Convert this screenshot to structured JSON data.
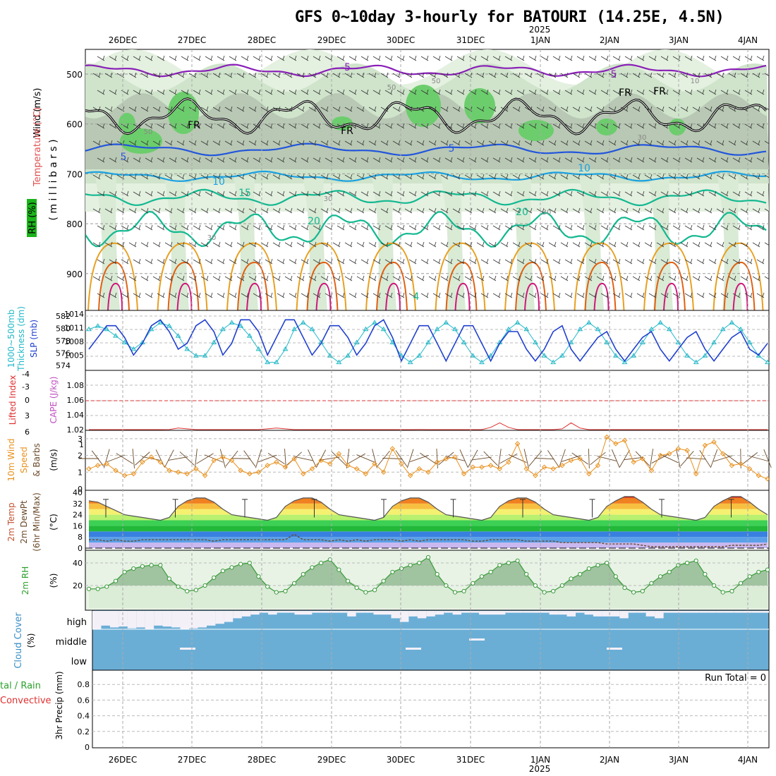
{
  "title": "GFS 0~10day 3-hourly for BATOURI (14.25E, 4.5N)",
  "run_total": "Run Total = 0",
  "colors": {
    "wind_label": "#000000",
    "temperature_label": "#e05050",
    "rh_label": "#00a000",
    "slp_line": "#1f3fd0",
    "thickness_line": "#20b8c8",
    "lifted_index": "#e03030",
    "cape": "#c050c0",
    "wind_speed": "#e8901c",
    "wind_barb": "#6b4a2a",
    "rh_fill": "#9fcf9f",
    "rh_line": "#3a9a3a",
    "cloud": "#6aaed6",
    "precip_total": "#2ca02c",
    "precip_convective": "#e03030"
  },
  "axis": {
    "dates_top": [
      "26DEC",
      "27DEC",
      "28DEC",
      "29DEC",
      "30DEC",
      "31DEC",
      "1JAN",
      "2JAN",
      "3JAN",
      "4JAN"
    ],
    "dates_bottom": [
      "26DEC",
      "27DEC",
      "28DEC",
      "29DEC",
      "30DEC",
      "31DEC",
      "1JAN",
      "2JAN",
      "3JAN",
      "4JAN"
    ],
    "year_top": "2025",
    "year_bottom": "2025"
  },
  "panels": {
    "upper": {
      "ylabel_wind": "Wind (m/s)",
      "ylabel_temp": "Temperature (°C)",
      "ylabel_rh": "RH (%)",
      "ylabel_mb": "( m i l l i b a r s )",
      "yticks": [
        "500",
        "600",
        "700",
        "800",
        "900"
      ],
      "contour_labels": [
        "-5",
        "5",
        "FR",
        "FR",
        "FR",
        "FR",
        "5",
        "5",
        "10",
        "10",
        "15",
        "20",
        "20",
        "30",
        "30",
        "50",
        "50",
        "50",
        "30",
        "10",
        "30",
        "4"
      ]
    },
    "slp": {
      "ylabel_thick": "1000~500mb",
      "ylabel_thick2": "Thickness (dm)",
      "ylabel_slp": "SLP (mb)",
      "left_ticks": [
        "582",
        "580",
        "578",
        "576",
        "574"
      ],
      "right_ticks": [
        "1014",
        "1011",
        "1008",
        "1005"
      ]
    },
    "cape": {
      "ylabel_li": "Lifted Index",
      "ylabel_cape": "CAPE (J/kg)",
      "left_ticks": [
        "-4",
        "-3",
        "-1",
        "0",
        "3",
        "6"
      ],
      "right_ticks": [
        "1.08",
        "1.06",
        "1.04",
        "1.02",
        "1"
      ]
    },
    "wind10": {
      "ylabel_a": "10m Wind",
      "ylabel_b": "Speed",
      "ylabel_c": "& Barbs",
      "ylabel_d": "(m/s)",
      "yticks": [
        "3",
        "2",
        "1",
        "0"
      ]
    },
    "temp2m": {
      "ylabel_a": "2m Temp",
      "ylabel_b": "2m DewPt",
      "ylabel_c": "(6hr Min/Max)",
      "ylabel_d": "(°C)",
      "yticks": [
        "40",
        "32",
        "24",
        "16",
        "8",
        "0"
      ]
    },
    "rh2m": {
      "ylabel": "2m RH",
      "ylabel_unit": "(%)",
      "yticks": [
        "40",
        "20"
      ]
    },
    "cloud": {
      "ylabel": "Cloud Cover",
      "ylabel_unit": "(%)",
      "levels": [
        "high",
        "middle",
        "low"
      ]
    },
    "precip": {
      "ylabel_a": "tal / Rain",
      "ylabel_b": "Convective",
      "ylabel_c": "3hr Precip (mm)",
      "yticks": [
        "0.8",
        "0.6",
        "0.4",
        "0.2",
        "0"
      ]
    }
  },
  "chart_data": [
    {
      "type": "line",
      "title": "1000~500mb Thickness (dm) / SLP (mb)",
      "series": [
        {
          "name": "SLP (mb)",
          "values": [
            1008,
            1010,
            1012,
            1012,
            1010,
            1007,
            1009,
            1012,
            1013,
            1011,
            1008,
            1009,
            1012,
            1013,
            1011,
            1007,
            1009,
            1013,
            1013,
            1011,
            1007,
            1010,
            1013,
            1013,
            1010,
            1007,
            1009,
            1012,
            1012,
            1010,
            1007,
            1009,
            1012,
            1013,
            1010,
            1006,
            1009,
            1012,
            1012,
            1009,
            1006,
            1009,
            1012,
            1012,
            1009,
            1006,
            1009,
            1011,
            1011,
            1008,
            1006,
            1008,
            1011,
            1012,
            1008,
            1006,
            1008,
            1010,
            1011,
            1008,
            1006,
            1008,
            1010,
            1011,
            1008,
            1006,
            1008,
            1010,
            1011,
            1008,
            1006,
            1008,
            1010,
            1011,
            1008,
            1007,
            1009
          ]
        },
        {
          "name": "Thickness (dm)",
          "values": [
            580,
            580.5,
            580,
            579,
            578,
            577,
            578,
            580,
            581,
            580.5,
            579,
            577,
            576,
            576,
            578,
            580,
            581,
            580.5,
            579,
            577,
            575,
            575,
            577,
            580,
            581,
            580,
            578,
            576,
            575,
            576,
            578,
            580,
            581,
            580,
            578,
            576,
            575,
            576,
            578,
            580,
            581,
            580,
            578,
            576,
            575,
            576,
            578,
            580,
            581,
            580,
            578,
            576,
            575,
            576,
            578,
            580,
            581,
            580,
            578,
            576,
            575,
            576,
            578,
            580,
            581,
            580,
            578,
            576,
            575,
            576,
            578,
            580,
            581,
            580,
            578,
            576,
            575
          ]
        }
      ],
      "left_ylim": [
        574,
        582
      ],
      "right_ylim": [
        1005,
        1014
      ]
    },
    {
      "type": "line",
      "title": "Lifted Index / CAPE (J/kg)",
      "series": [
        {
          "name": "CAPE (J/kg)",
          "values": [
            1,
            1,
            1,
            1,
            1,
            1,
            1,
            1,
            1,
            1.001,
            1.003,
            1.002,
            1,
            1,
            1,
            1,
            1,
            1,
            1,
            1,
            1.002,
            1.003,
            1.002,
            1,
            1,
            1,
            1,
            1,
            1,
            1,
            1,
            1,
            1,
            1,
            1,
            1,
            1,
            1.001,
            1,
            1,
            1,
            1,
            1,
            1,
            1,
            1.004,
            1.01,
            1.004,
            1,
            1,
            1,
            1,
            1,
            1.002,
            1.01,
            1.003,
            1,
            1,
            1,
            1,
            1,
            1,
            1,
            1,
            1,
            1,
            1,
            1,
            1,
            1,
            1,
            1,
            1,
            1,
            1,
            1,
            1
          ]
        }
      ],
      "cape_ylim": [
        1,
        1.08
      ]
    },
    {
      "type": "line",
      "title": "10m Wind Speed & Barbs (m/s)",
      "series": [
        {
          "name": "Speed",
          "values": [
            1.2,
            1.4,
            1.5,
            1.1,
            0.8,
            0.9,
            1.6,
            1.9,
            1.6,
            1.1,
            1.0,
            0.9,
            1.2,
            0.8,
            1.7,
            1.9,
            1.7,
            1.1,
            0.9,
            1.0,
            1.4,
            1.6,
            1.3,
            1.8,
            0.9,
            1.2,
            1.7,
            1.5,
            2.1,
            1.4,
            1.2,
            0.9,
            1.5,
            1.0,
            2.4,
            1.5,
            0.8,
            1.2,
            1.0,
            1.6,
            1.8,
            1.9,
            0.9,
            1.3,
            1.3,
            1.4,
            1.2,
            1.6,
            2.7,
            1.2,
            0.8,
            1.3,
            1.2,
            1.4,
            1.7,
            1.8,
            0.9,
            1.4,
            3.1,
            2.7,
            2.9,
            1.6,
            1.8,
            1.1,
            2.0,
            2.1,
            2.4,
            2.3,
            0.9,
            2.6,
            2.8,
            2.1,
            1.4,
            1.5,
            1.2,
            0.8,
            0.6
          ]
        }
      ],
      "ylim": [
        0,
        3.5
      ]
    },
    {
      "type": "line",
      "title": "2m Temp / 2m DewPt (6hr Min/Max) (°C)",
      "series": [
        {
          "name": "2m Temp",
          "values": [
            34,
            33,
            30,
            27,
            24,
            23,
            22,
            21,
            20,
            22,
            30,
            34,
            36,
            36,
            33,
            28,
            24,
            23,
            22,
            21,
            20,
            22,
            30,
            34,
            36,
            36,
            33,
            28,
            24,
            23,
            22,
            21,
            20,
            22,
            30,
            34,
            36,
            36,
            33,
            28,
            24,
            23,
            22,
            21,
            20,
            22,
            30,
            34,
            36,
            36,
            33,
            28,
            24,
            23,
            22,
            21,
            20,
            22,
            30,
            34,
            37,
            37,
            33,
            28,
            24,
            23,
            22,
            21,
            20,
            22,
            30,
            34,
            37,
            37,
            33,
            28,
            24
          ]
        },
        {
          "name": "2m DewPt",
          "values": [
            6,
            6,
            5,
            6,
            5,
            5,
            6,
            6,
            6,
            6,
            6,
            6,
            6,
            6,
            5,
            6,
            6,
            6,
            6,
            6,
            6,
            6,
            6,
            10,
            6,
            6,
            6,
            5,
            6,
            5,
            6,
            5,
            6,
            6,
            6,
            5,
            6,
            5,
            6,
            6,
            6,
            6,
            6,
            5,
            5,
            6,
            6,
            6,
            6,
            5,
            5,
            5,
            5,
            4,
            4,
            4,
            4,
            4,
            3,
            3,
            3,
            3,
            2,
            1,
            1,
            1,
            1,
            1,
            1,
            1,
            1,
            1,
            2,
            2,
            2,
            2,
            3
          ]
        }
      ],
      "ylim": [
        0,
        40
      ]
    },
    {
      "type": "area",
      "title": "2m RH (%)",
      "series": [
        {
          "name": "2m RH",
          "values": [
            17,
            17,
            19,
            24,
            32,
            35,
            37,
            38,
            38,
            26,
            19,
            15,
            16,
            20,
            27,
            33,
            36,
            39,
            40,
            28,
            19,
            14,
            15,
            22,
            30,
            36,
            40,
            43,
            34,
            24,
            18,
            14,
            16,
            24,
            32,
            35,
            38,
            40,
            45,
            30,
            20,
            14,
            15,
            22,
            28,
            32,
            38,
            40,
            42,
            30,
            20,
            14,
            15,
            20,
            26,
            30,
            35,
            38,
            40,
            28,
            18,
            14,
            15,
            22,
            28,
            32,
            38,
            40,
            42,
            30,
            20,
            14,
            15,
            22,
            28,
            32,
            34
          ]
        }
      ],
      "ylim": [
        0,
        50
      ]
    },
    {
      "type": "bar",
      "title": "Cloud Cover (%)",
      "series": [
        {
          "name": "high",
          "values": [
            100,
            80,
            90,
            85,
            95,
            90,
            100,
            80,
            85,
            90,
            100,
            95,
            90,
            80,
            70,
            60,
            40,
            30,
            20,
            10,
            20,
            10,
            10,
            20,
            20,
            10,
            10,
            10,
            10,
            30,
            10,
            10,
            20,
            20,
            40,
            60,
            30,
            40,
            30,
            20,
            10,
            20,
            10,
            10,
            20,
            20,
            20,
            10,
            10,
            10,
            10,
            10,
            20,
            20,
            30,
            10,
            20,
            30,
            30,
            30,
            40,
            10,
            10,
            30,
            40,
            10,
            10,
            10,
            10,
            10,
            10,
            10,
            10,
            10,
            10,
            10,
            10
          ]
        },
        {
          "name": "middle",
          "values": [
            0,
            0,
            0,
            0,
            0,
            0,
            0,
            0,
            0,
            0,
            0,
            0,
            0,
            0,
            0,
            0,
            0,
            0,
            0,
            0,
            0,
            0,
            0,
            0,
            0,
            0,
            0,
            0,
            0,
            0,
            0,
            0,
            0,
            0,
            0,
            0,
            0,
            0,
            0,
            0,
            0,
            0,
            0,
            0,
            0,
            0,
            0,
            0,
            0,
            0,
            0,
            0,
            0,
            0,
            0,
            0,
            0,
            0,
            0,
            0,
            0,
            0,
            0,
            0,
            0,
            0,
            0,
            0,
            0,
            0,
            0,
            0,
            0,
            0,
            0,
            0,
            0
          ]
        },
        {
          "name": "low",
          "values": [
            0,
            0,
            0,
            0,
            0,
            0,
            0,
            0,
            0,
            0,
            0,
            0,
            0,
            0,
            0,
            0,
            0,
            0,
            0,
            0,
            0,
            0,
            0,
            0,
            0,
            0,
            0,
            0,
            0,
            0,
            0,
            0,
            0,
            0,
            0,
            0,
            0,
            0,
            0,
            0,
            0,
            0,
            0,
            0,
            0,
            0,
            0,
            0,
            0,
            0,
            0,
            0,
            0,
            0,
            0,
            0,
            0,
            0,
            0,
            0,
            0,
            0,
            0,
            0,
            0,
            0,
            0,
            0,
            0,
            0,
            0,
            0,
            0,
            0,
            0,
            0,
            0
          ]
        }
      ]
    },
    {
      "type": "bar",
      "title": "3hr Precip (mm)",
      "series": [
        {
          "name": "Total / Rain",
          "values": [
            0,
            0,
            0,
            0,
            0,
            0,
            0,
            0,
            0,
            0
          ]
        },
        {
          "name": "Convective",
          "values": [
            0,
            0,
            0,
            0,
            0,
            0,
            0,
            0,
            0,
            0
          ]
        }
      ],
      "ylim": [
        0,
        1
      ]
    }
  ]
}
